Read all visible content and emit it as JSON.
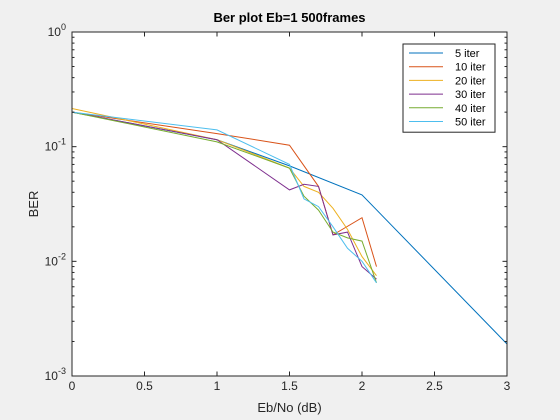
{
  "chart_data": {
    "type": "line",
    "title": "Ber plot  Eb=1 500frames",
    "xlabel": "Eb/No (dB)",
    "ylabel": "BER",
    "xlim": [
      0,
      3
    ],
    "ylim": [
      0.001,
      1
    ],
    "yscale": "log",
    "x_ticks": [
      "0",
      "0.5",
      "1",
      "1.5",
      "2",
      "2.5",
      "3"
    ],
    "y_ticks": [
      {
        "base": "10",
        "exp": "-3"
      },
      {
        "base": "10",
        "exp": "-2"
      },
      {
        "base": "10",
        "exp": "-1"
      },
      {
        "base": "10",
        "exp": "0"
      }
    ],
    "grid": false,
    "legend_position": "top-right",
    "series": [
      {
        "name": "5 iter",
        "color": "#0072bd",
        "x": [
          0,
          1,
          1.5,
          2.0,
          3.0
        ],
        "y": [
          0.2,
          0.115,
          0.068,
          0.038,
          0.0019
        ]
      },
      {
        "name": "10 iter",
        "color": "#d95319",
        "x": [
          0,
          1,
          1.5,
          1.7,
          1.8,
          2.0,
          2.1
        ],
        "y": [
          0.2,
          0.13,
          0.103,
          0.045,
          0.017,
          0.024,
          0.009
        ]
      },
      {
        "name": "20 iter",
        "color": "#edb120",
        "x": [
          0,
          1,
          1.5,
          1.6,
          1.7,
          1.8,
          1.9,
          2.0,
          2.1
        ],
        "y": [
          0.215,
          0.115,
          0.065,
          0.045,
          0.04,
          0.029,
          0.019,
          0.011,
          0.0075
        ]
      },
      {
        "name": "30 iter",
        "color": "#7e2f8e",
        "x": [
          0,
          1,
          1.5,
          1.6,
          1.7,
          1.8,
          1.9,
          2.0,
          2.1
        ],
        "y": [
          0.2,
          0.115,
          0.042,
          0.047,
          0.045,
          0.017,
          0.018,
          0.009,
          0.007
        ]
      },
      {
        "name": "40 iter",
        "color": "#77ac30",
        "x": [
          0,
          1,
          1.5,
          1.6,
          1.7,
          1.8,
          1.9,
          2.0,
          2.1
        ],
        "y": [
          0.2,
          0.11,
          0.065,
          0.037,
          0.028,
          0.018,
          0.016,
          0.015,
          0.0065
        ]
      },
      {
        "name": "50 iter",
        "color": "#4dbeee",
        "x": [
          0,
          1,
          1.5,
          1.6,
          1.7,
          1.8,
          1.9,
          2.0,
          2.1
        ],
        "y": [
          0.2,
          0.14,
          0.07,
          0.035,
          0.03,
          0.02,
          0.013,
          0.01,
          0.0065
        ]
      }
    ]
  }
}
